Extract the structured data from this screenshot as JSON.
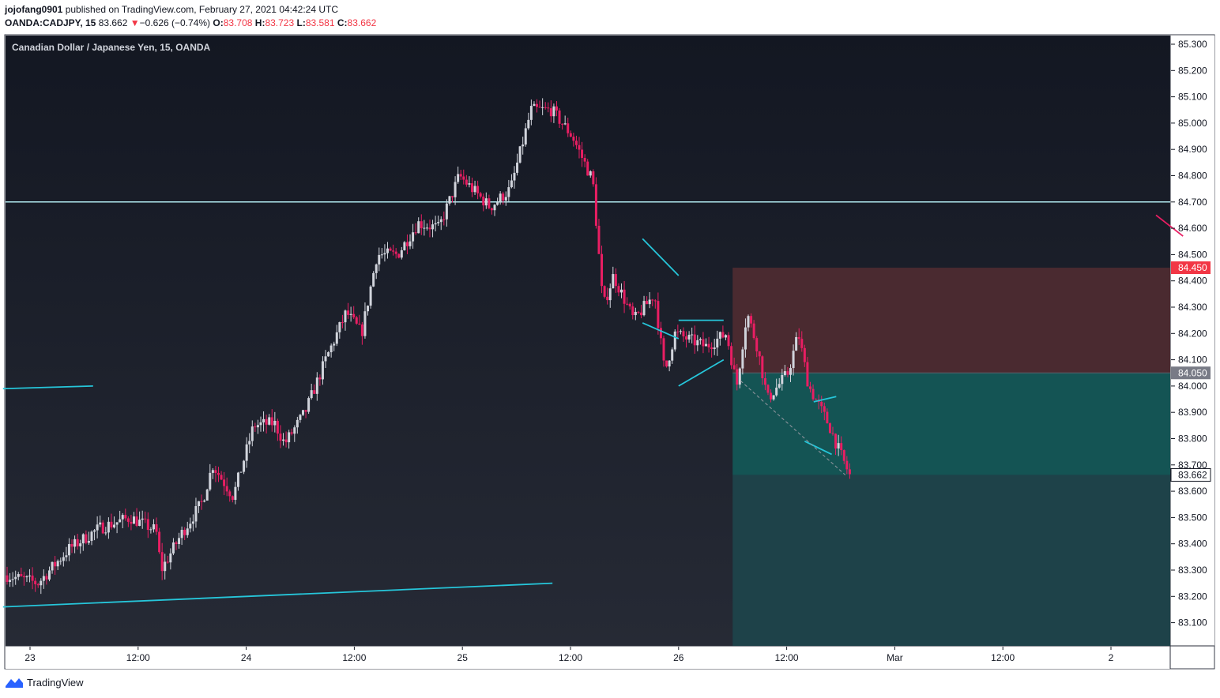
{
  "header": {
    "author": "jojofang0901",
    "published_text": "published on TradingView.com, February 27, 2021 04:42:24 UTC",
    "symbol": "OANDA:CADJPY, 15",
    "last": "83.662",
    "change_arrow": "▼",
    "change": "−0.626 (−0.74%)",
    "o_label": "O:",
    "o_value": "83.708",
    "h_label": "H:",
    "h_value": "83.723",
    "l_label": "L:",
    "l_value": "83.581",
    "c_label": "C:",
    "c_value": "83.662"
  },
  "chart_title": "Canadian Dollar / Japanese Yen, 15, OANDA",
  "footer": {
    "brand": "TradingView"
  },
  "colors": {
    "background_top": "#131722",
    "background_bottom": "#262a35",
    "up_candle": "#d1d4dc",
    "down_candle": "#e91e63",
    "trendline": "#26c6da",
    "level_line": "#b2ebf2",
    "stop_zone": "#4a2a30",
    "target_zone_top": "#145454",
    "target_zone_bottom": "#1e4249",
    "stop_tag": "#f23645",
    "entry_tag": "#787b86"
  },
  "chart_data": {
    "type": "candlestick",
    "symbol": "CADJPY",
    "interval": "15",
    "ylim": [
      83.0,
      85.35
    ],
    "y_ticks": [
      "85.300",
      "85.200",
      "85.100",
      "85.000",
      "84.900",
      "84.800",
      "84.700",
      "84.600",
      "84.500",
      "84.400",
      "84.300",
      "84.200",
      "84.100",
      "84.000",
      "83.900",
      "83.800",
      "83.700",
      "83.600",
      "83.500",
      "83.400",
      "83.300",
      "83.200",
      "83.100"
    ],
    "x_ticks": [
      "23",
      "12:00",
      "24",
      "12:00",
      "25",
      "12:00",
      "26",
      "12:00",
      "Mar",
      "12:00",
      "2"
    ],
    "price_tags": {
      "stop": "84.450",
      "entry": "84.050",
      "last": "83.662"
    },
    "horizontal_level": 84.7,
    "position": {
      "type": "short",
      "entry": 84.05,
      "stop": 84.45,
      "target": 83.08,
      "current": 83.662
    },
    "price_path": [
      [
        0,
        83.28
      ],
      [
        0.03,
        83.25
      ],
      [
        0.06,
        83.38
      ],
      [
        0.09,
        83.46
      ],
      [
        0.12,
        83.5
      ],
      [
        0.145,
        83.45
      ],
      [
        0.15,
        83.3
      ],
      [
        0.17,
        83.44
      ],
      [
        0.19,
        83.56
      ],
      [
        0.2,
        83.7
      ],
      [
        0.22,
        83.58
      ],
      [
        0.24,
        83.85
      ],
      [
        0.26,
        83.86
      ],
      [
        0.27,
        83.78
      ],
      [
        0.29,
        83.9
      ],
      [
        0.31,
        84.1
      ],
      [
        0.33,
        84.28
      ],
      [
        0.345,
        84.2
      ],
      [
        0.36,
        84.5
      ],
      [
        0.38,
        84.5
      ],
      [
        0.4,
        84.62
      ],
      [
        0.42,
        84.6
      ],
      [
        0.44,
        84.8
      ],
      [
        0.47,
        84.68
      ],
      [
        0.49,
        84.75
      ],
      [
        0.51,
        85.05
      ],
      [
        0.53,
        85.05
      ],
      [
        0.55,
        84.95
      ],
      [
        0.57,
        84.78
      ],
      [
        0.58,
        84.3
      ],
      [
        0.59,
        84.42
      ],
      [
        0.61,
        84.25
      ],
      [
        0.63,
        84.35
      ],
      [
        0.64,
        84.05
      ],
      [
        0.65,
        84.2
      ],
      [
        0.68,
        84.15
      ],
      [
        0.7,
        84.2
      ],
      [
        0.71,
        84.0
      ],
      [
        0.72,
        84.28
      ],
      [
        0.73,
        84.15
      ],
      [
        0.74,
        83.95
      ],
      [
        0.76,
        84.05
      ],
      [
        0.77,
        84.2
      ],
      [
        0.78,
        84.0
      ],
      [
        0.8,
        83.85
      ],
      [
        0.81,
        83.75
      ],
      [
        0.82,
        83.66
      ]
    ],
    "trendlines": [
      {
        "from": [
          "22 21:00",
          83.16
        ],
        "to": [
          "25 10:00",
          83.25
        ]
      },
      {
        "from": [
          "22 21:00",
          83.99
        ],
        "to": [
          "23 07:00",
          84.0
        ]
      },
      {
        "from": [
          "25 20:00",
          84.56
        ],
        "to": [
          "26 00:00",
          84.42
        ]
      },
      {
        "from": [
          "25 20:00",
          84.24
        ],
        "to": [
          "26 00:00",
          84.18
        ]
      },
      {
        "from": [
          "26 00:00",
          84.25
        ],
        "to": [
          "26 05:00",
          84.25
        ]
      },
      {
        "from": [
          "26 00:00",
          84.0
        ],
        "to": [
          "26 05:00",
          84.1
        ]
      },
      {
        "from": [
          "26 15:00",
          83.94
        ],
        "to": [
          "26 17:30",
          83.96
        ]
      },
      {
        "from": [
          "26 14:00",
          83.79
        ],
        "to": [
          "26 17:00",
          83.74
        ]
      },
      {
        "from": [
          "2 05:00",
          84.65
        ],
        "to": [
          "2 08:00",
          84.57
        ]
      }
    ]
  }
}
